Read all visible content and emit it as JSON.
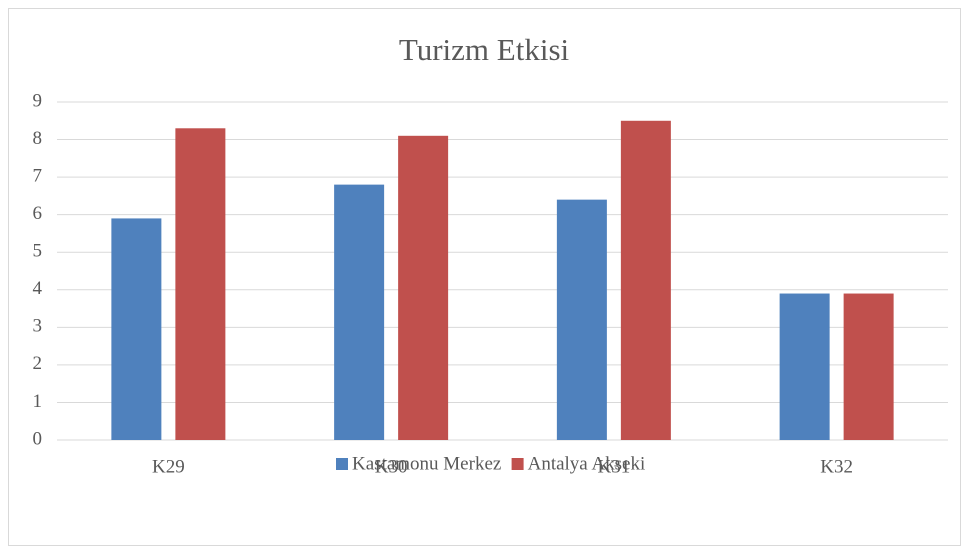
{
  "chart_data": {
    "type": "bar",
    "title": "Turizm Etkisi",
    "categories": [
      "K29",
      "K30",
      "K31",
      "K32"
    ],
    "series": [
      {
        "name": "Kastamonu Merkez",
        "color": "#4f81bd",
        "values": [
          5.9,
          6.8,
          6.4,
          3.9
        ]
      },
      {
        "name": "Antalya Akseki",
        "color": "#c0504d",
        "values": [
          8.3,
          8.1,
          8.5,
          3.9
        ]
      }
    ],
    "ylim": [
      0,
      9
    ],
    "yticks": [
      0,
      1,
      2,
      3,
      4,
      5,
      6,
      7,
      8,
      9
    ],
    "grid": true,
    "legend": "bottom"
  }
}
